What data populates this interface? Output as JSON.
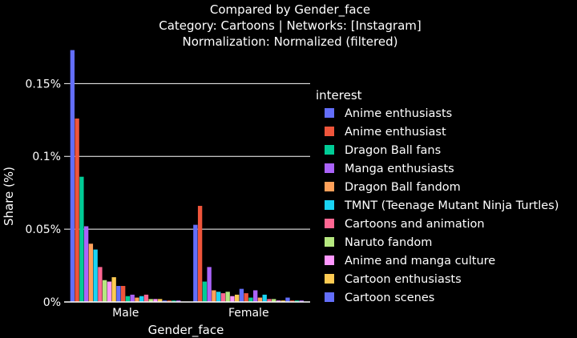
{
  "chart_data": {
    "type": "bar",
    "barmode": "group",
    "title": [
      "Compared by Gender_face",
      "Category: Cartoons | Networks: [Instagram]",
      "Normalization: Normalized (filtered)"
    ],
    "xlabel": "Gender_face",
    "ylabel": "Share (%)",
    "categories": [
      "Male",
      "Female"
    ],
    "ylim": [
      0,
      0.17
    ],
    "yticks": [
      0,
      0.05,
      0.1,
      0.15
    ],
    "ytick_labels": [
      "0%",
      "0.05%",
      "0.1%",
      "0.15%"
    ],
    "grid": true,
    "legend_title": "interest",
    "legend_position": "right",
    "series": [
      {
        "name": "Anime enthusiasts",
        "color": "#636efa",
        "values": [
          0.173,
          0.053
        ]
      },
      {
        "name": "Anime enthusiast",
        "color": "#ef553b",
        "values": [
          0.126,
          0.066
        ]
      },
      {
        "name": "Dragon Ball fans",
        "color": "#00cc96",
        "values": [
          0.086,
          0.014
        ]
      },
      {
        "name": "Manga enthusiasts",
        "color": "#ab63fa",
        "values": [
          0.052,
          0.024
        ]
      },
      {
        "name": "Dragon Ball fandom",
        "color": "#ffa15a",
        "values": [
          0.04,
          0.008
        ]
      },
      {
        "name": "TMNT (Teenage Mutant Ninja Turtles)",
        "color": "#19d3f3",
        "values": [
          0.036,
          0.007
        ]
      },
      {
        "name": "Cartoons and animation",
        "color": "#ff6692",
        "values": [
          0.024,
          0.006
        ]
      },
      {
        "name": "Naruto fandom",
        "color": "#b6e880",
        "values": [
          0.015,
          0.007
        ]
      },
      {
        "name": "Anime and manga culture",
        "color": "#ff97ff",
        "values": [
          0.014,
          0.004
        ]
      },
      {
        "name": "Cartoon enthusiasts",
        "color": "#fecb52",
        "values": [
          0.017,
          0.005
        ]
      },
      {
        "name": "Cartoon scenes",
        "color": "#636efa",
        "values": [
          0.011,
          0.009
        ]
      },
      {
        "name": "",
        "color": "#ef553b",
        "values": [
          0.011,
          0.006
        ]
      },
      {
        "name": "",
        "color": "#00cc96",
        "values": [
          0.004,
          0.003
        ]
      },
      {
        "name": "",
        "color": "#ab63fa",
        "values": [
          0.005,
          0.008
        ]
      },
      {
        "name": "",
        "color": "#ffa15a",
        "values": [
          0.003,
          0.003
        ]
      },
      {
        "name": "",
        "color": "#19d3f3",
        "values": [
          0.004,
          0.005
        ]
      },
      {
        "name": "",
        "color": "#ff6692",
        "values": [
          0.005,
          0.002
        ]
      },
      {
        "name": "",
        "color": "#b6e880",
        "values": [
          0.002,
          0.002
        ]
      },
      {
        "name": "",
        "color": "#ff97ff",
        "values": [
          0.002,
          0.001
        ]
      },
      {
        "name": "",
        "color": "#fecb52",
        "values": [
          0.002,
          0.001
        ]
      },
      {
        "name": "",
        "color": "#636efa",
        "values": [
          0.001,
          0.003
        ]
      },
      {
        "name": "",
        "color": "#ef553b",
        "values": [
          0.001,
          0.001
        ]
      },
      {
        "name": "",
        "color": "#00cc96",
        "values": [
          0.001,
          0.001
        ]
      },
      {
        "name": "",
        "color": "#ab63fa",
        "values": [
          0.001,
          0.001
        ]
      }
    ]
  }
}
